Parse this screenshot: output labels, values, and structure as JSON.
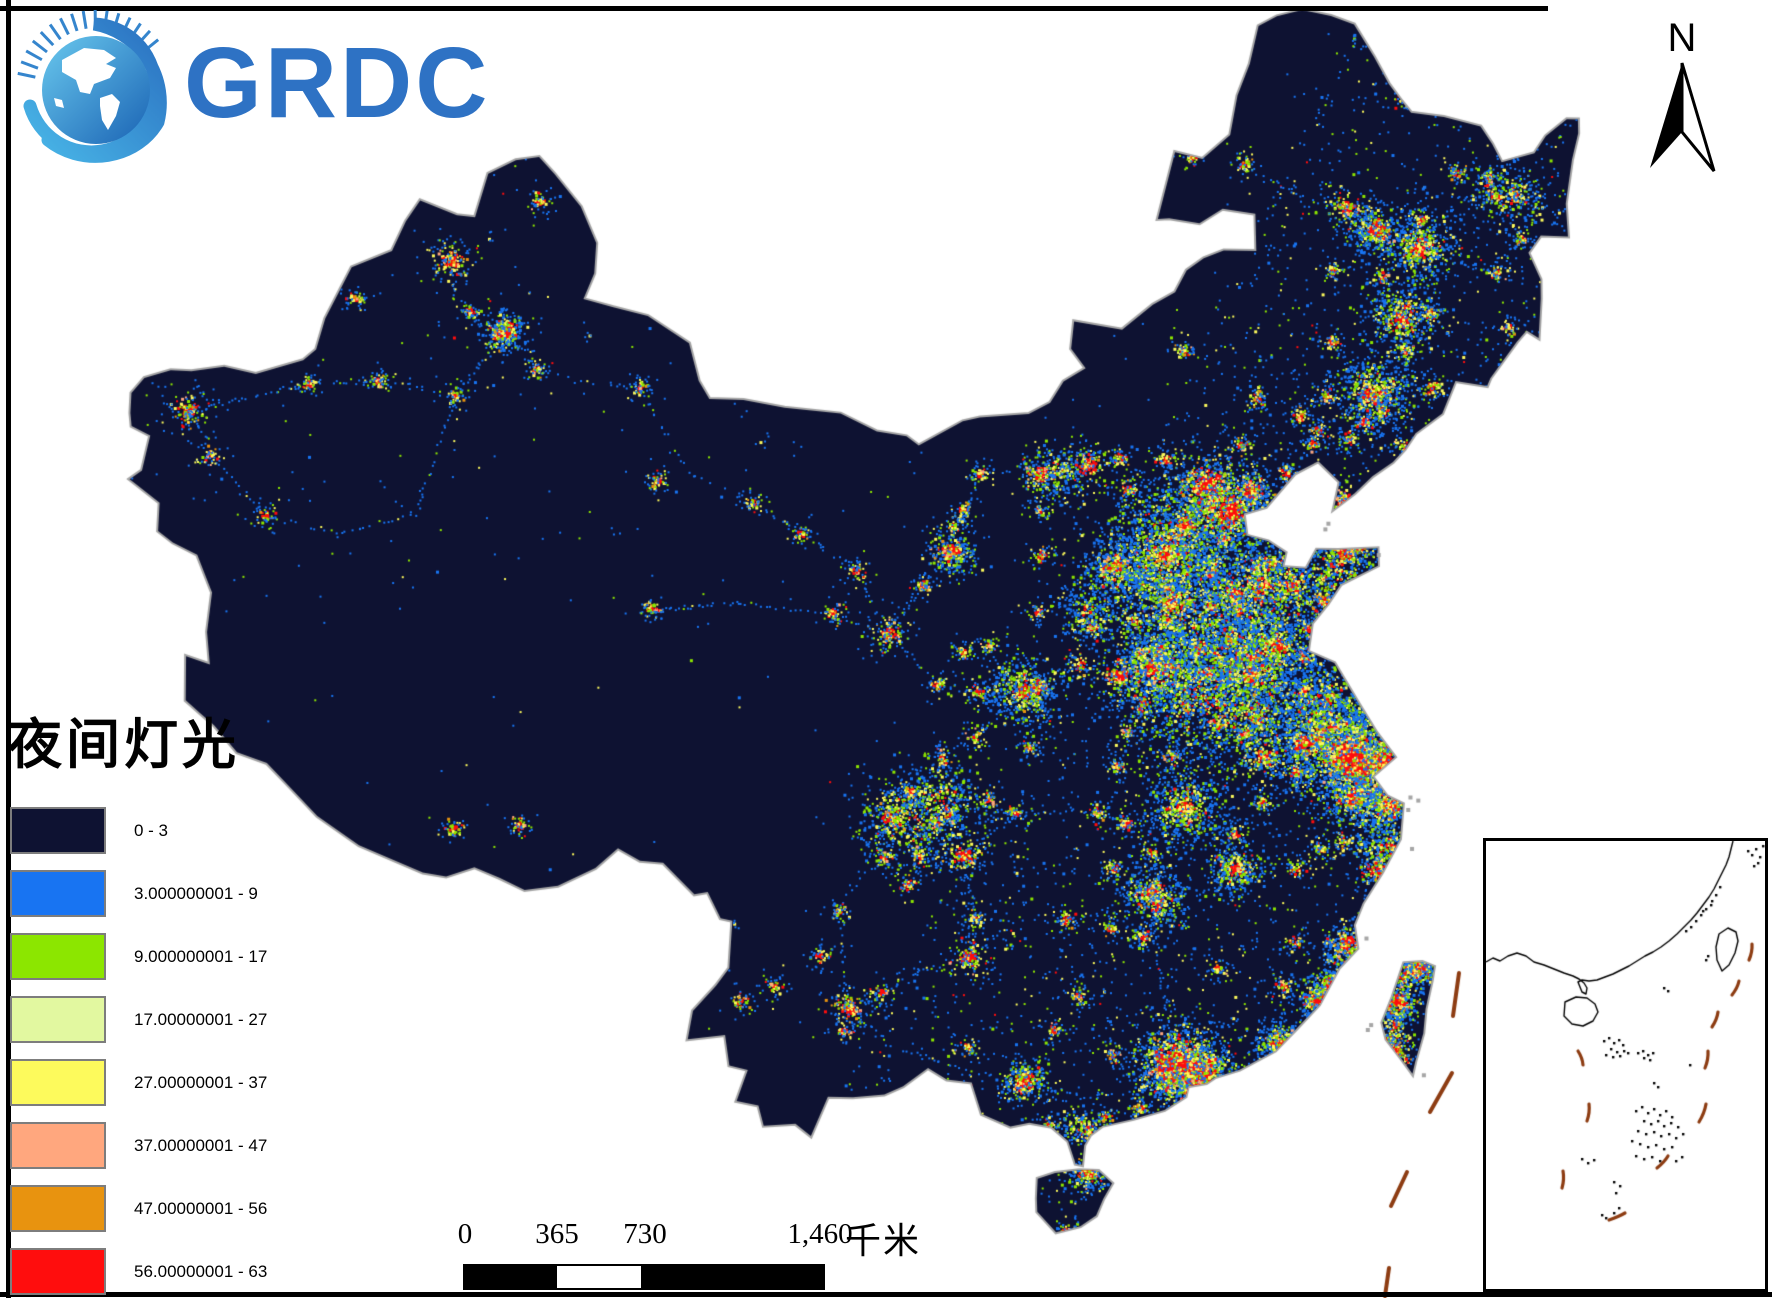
{
  "logo": {
    "text": "GRDC",
    "text_color": "#2e72c4"
  },
  "north_arrow": {
    "label": "N"
  },
  "legend": {
    "title": "夜间灯光",
    "swatch_border": "#7d7d7d",
    "classes": [
      {
        "label": "0 - 3",
        "color": "#0e1232"
      },
      {
        "label": "3.000000001 - 9",
        "color": "#1874f2"
      },
      {
        "label": "9.000000001 - 17",
        "color": "#8ce600"
      },
      {
        "label": "17.00000001 - 27",
        "color": "#e2f8a0"
      },
      {
        "label": "27.00000001 - 37",
        "color": "#fdfa5c"
      },
      {
        "label": "37.00000001 - 47",
        "color": "#ffa77e"
      },
      {
        "label": "47.00000001 - 56",
        "color": "#e8930f"
      },
      {
        "label": "56.00000001 - 63",
        "color": "#ff0d0d"
      }
    ]
  },
  "scale_bar": {
    "ticks": [
      "0",
      "365",
      "730",
      "1,460"
    ],
    "unit": "千米"
  },
  "map": {
    "land_color": "#0e1232",
    "coast_color": "#a6a6a6",
    "sea_color": "#ffffff",
    "dash_line_color": "#8d3c12",
    "light_colors": {
      "low": "#1874f2",
      "mid": "#8ce600",
      "high": "#fdfa5c",
      "higher": "#e8930f",
      "salmon": "#ffa77e",
      "max": "#ff0d0d"
    }
  },
  "inset_map": {
    "name": "south-china-sea-inset"
  }
}
